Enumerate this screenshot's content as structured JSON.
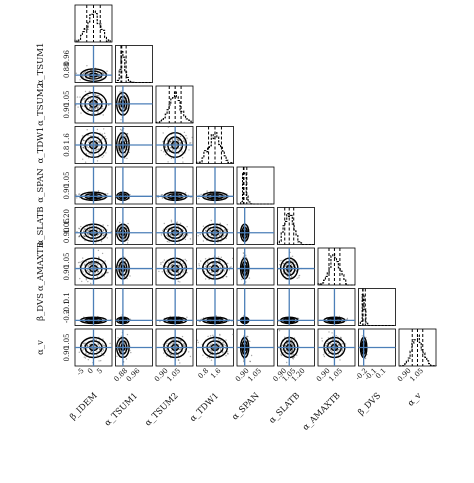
{
  "chart_data": {
    "type": "scatter",
    "subtype": "corner-plot",
    "parameters": [
      {
        "name": "β_IDEM",
        "ticks": [
          "-5",
          "0",
          "5"
        ],
        "ticks_shown_as_ylabel": false,
        "range": [
          -6,
          6
        ],
        "mean": 0.0,
        "sd": 2.2,
        "skew": 0
      },
      {
        "name": "α_TSUM1",
        "ticks": [
          "0.88",
          "0.96"
        ],
        "ticks_shown_as_ylabel": true,
        "range": [
          0.83,
          1.0
        ],
        "mean": 0.855,
        "sd": 0.015,
        "skew": 1
      },
      {
        "name": "α_TSUM2",
        "ticks": [
          "0.90",
          "1.05"
        ],
        "ticks_shown_as_ylabel": true,
        "range": [
          0.84,
          1.12
        ],
        "mean": 0.985,
        "sd": 0.045,
        "skew": 0
      },
      {
        "name": "α_TDW1",
        "ticks": [
          "0.8",
          "1.6"
        ],
        "ticks_shown_as_ylabel": true,
        "range": [
          0.4,
          2.0
        ],
        "mean": 1.2,
        "sd": 0.28,
        "skew": 0
      },
      {
        "name": "α_SPAN",
        "ticks": [
          "0.90",
          "1.05"
        ],
        "ticks_shown_as_ylabel": true,
        "range": [
          0.86,
          1.12
        ],
        "mean": 0.905,
        "sd": 0.015,
        "skew": 1
      },
      {
        "name": "α_SLATB",
        "ticks": [
          "0.90",
          "1.05",
          "1.20"
        ],
        "ticks_shown_as_ylabel": true,
        "range": [
          0.84,
          1.25
        ],
        "mean": 0.97,
        "sd": 0.05,
        "skew": 0
      },
      {
        "name": "α_AMAXTB",
        "ticks": [
          "0.90",
          "1.05"
        ],
        "ticks_shown_as_ylabel": true,
        "range": [
          0.85,
          1.12
        ],
        "mean": 0.97,
        "sd": 0.04,
        "skew": 0
      },
      {
        "name": "β_DVS",
        "ticks": [
          "-0.2",
          "-0.1",
          "0.1"
        ],
        "ticks_shown_as_ylabel": true,
        "range": [
          -0.25,
          0.15
        ],
        "mean": -0.205,
        "sd": 0.018,
        "skew": 1
      },
      {
        "name": "α_v",
        "ticks": [
          "0.90",
          "1.05"
        ],
        "ticks_shown_as_ylabel": true,
        "range": [
          0.84,
          1.12
        ],
        "mean": 0.98,
        "sd": 0.04,
        "skew": 0
      }
    ],
    "quantile_lines": [
      0.16,
      0.5,
      0.84
    ],
    "truth_line_color": "#4c7fb8",
    "contour_color": "#000000",
    "scatter_color": "#555555",
    "histogram_color": "#000000",
    "grid": false,
    "legend": "none"
  },
  "labels": {
    "y": [
      "α_TSUM1",
      "α_TSUM2",
      "α_TDW1",
      "α_SPAN",
      "α_SLATB",
      "α_AMAXTB",
      "β_DVS",
      "α_v"
    ],
    "x": [
      "β_IDEM",
      "α_TSUM1",
      "α_TSUM2",
      "α_TDW1",
      "α_SPAN",
      "α_SLATB",
      "α_AMAXTB",
      "β_DVS",
      "α_v"
    ]
  }
}
